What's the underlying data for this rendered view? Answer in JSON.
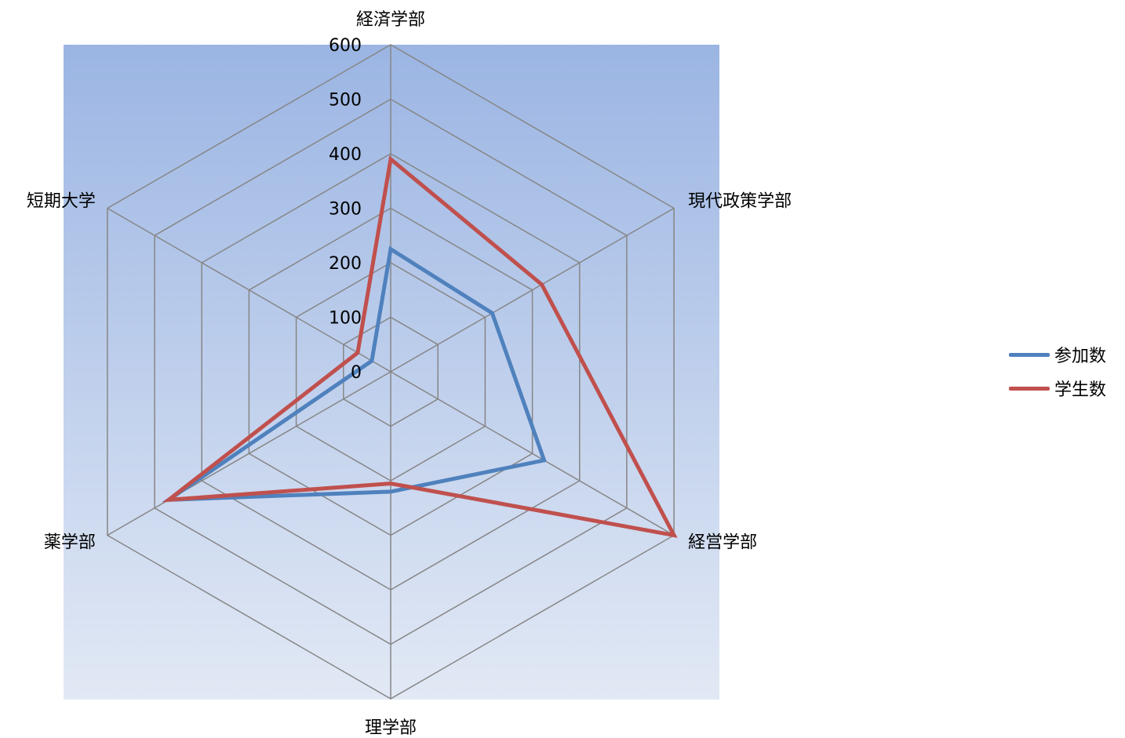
{
  "chart_data": {
    "type": "radar",
    "categories": [
      "経済学部",
      "現代政策学部",
      "経営学部",
      "理学部",
      "薬学部",
      "短期大学"
    ],
    "series": [
      {
        "name": "参加数",
        "values": [
          225,
          215,
          325,
          220,
          470,
          40
        ],
        "color": "#4F81BD"
      },
      {
        "name": "学生数",
        "values": [
          390,
          320,
          600,
          205,
          470,
          70
        ],
        "color": "#C0504D"
      }
    ],
    "rlim": [
      0,
      600
    ],
    "ticks": [
      "0",
      "100",
      "200",
      "300",
      "400",
      "500",
      "600"
    ],
    "grid": true,
    "legend_position": "right",
    "plot_background": {
      "top": "#9BB5E3",
      "bottom": "#E2E9F5"
    },
    "grid_color": "#868686"
  }
}
